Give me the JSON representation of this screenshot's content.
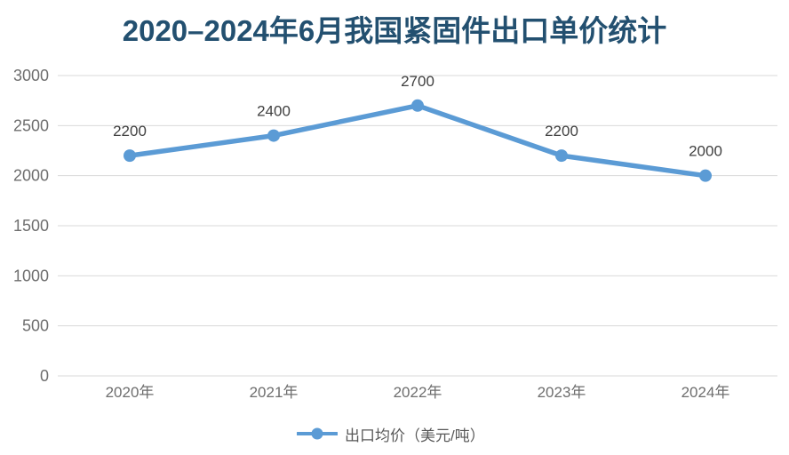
{
  "title": "2020–2024年6月我国紧固件出口单价统计",
  "legend": {
    "label": "出口均价（美元/吨）"
  },
  "chart_data": {
    "type": "line",
    "title": "2020–2024年6月我国紧固件出口单价统计",
    "categories": [
      "2020年",
      "2021年",
      "2022年",
      "2023年",
      "2024年"
    ],
    "series": [
      {
        "name": "出口均价（美元/吨）",
        "values": [
          2200,
          2400,
          2700,
          2200,
          2000
        ]
      }
    ],
    "xlabel": "",
    "ylabel": "",
    "ylim": [
      0,
      3000
    ],
    "yticks": [
      0,
      500,
      1000,
      1500,
      2000,
      2500,
      3000
    ],
    "grid": true,
    "data_labels": true,
    "legend_position": "bottom"
  },
  "colors": {
    "line": "#5B9BD5",
    "marker": "#5B9BD5",
    "title": "#235070",
    "grid": "#D9D9D9",
    "axis_text": "#6E6E6E",
    "data_label": "#404040",
    "legend_text": "#595959",
    "background": "#FFFFFF"
  }
}
